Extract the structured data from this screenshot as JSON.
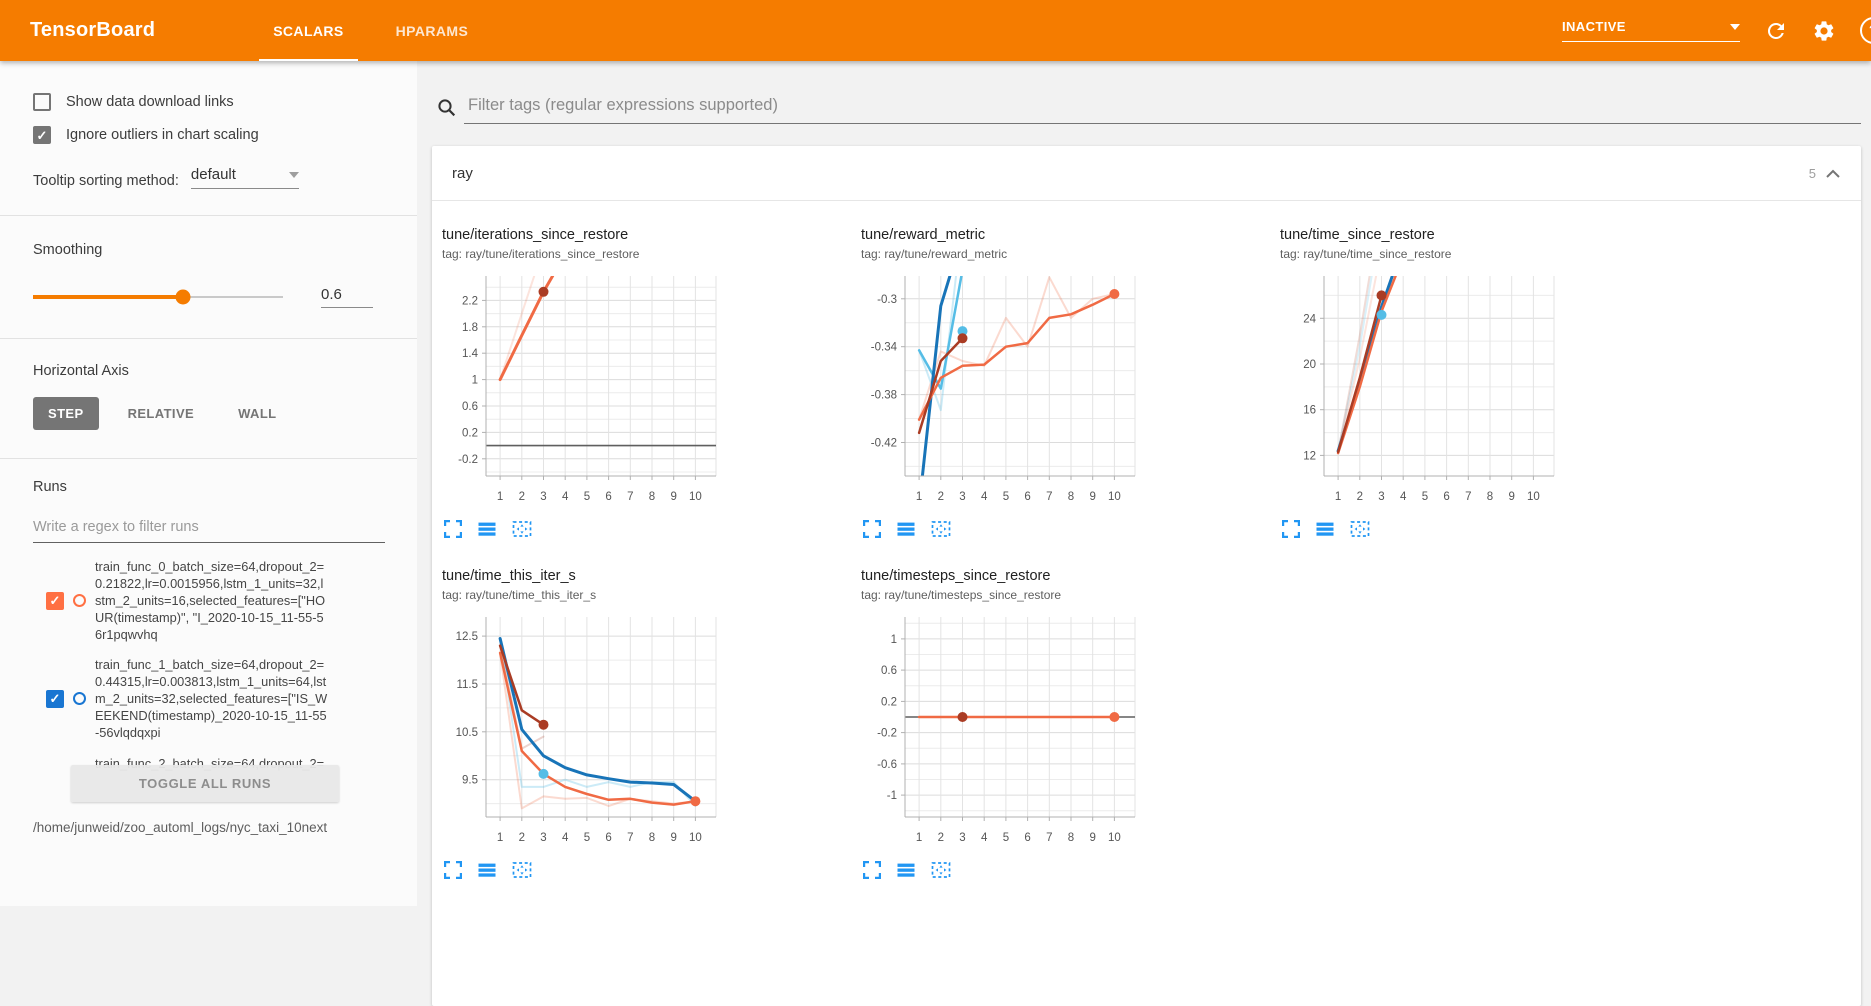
{
  "header": {
    "title": "TensorBoard",
    "tabs": [
      {
        "label": "SCALARS",
        "active": true
      },
      {
        "label": "HPARAMS",
        "active": false
      }
    ],
    "status": "INACTIVE",
    "help": "?"
  },
  "sidebar": {
    "checkboxes": [
      {
        "label": "Show data download links",
        "checked": false
      },
      {
        "label": "Ignore outliers in chart scaling",
        "checked": true
      }
    ],
    "tooltip_sorting": {
      "label": "Tooltip sorting method:",
      "value": "default"
    },
    "smoothing": {
      "label": "Smoothing",
      "value": "0.6",
      "percent": 60
    },
    "horizontal_axis": {
      "label": "Horizontal Axis",
      "options": [
        "STEP",
        "RELATIVE",
        "WALL"
      ],
      "selected": "STEP"
    },
    "runs": {
      "label": "Runs",
      "filter_placeholder": "Write a regex to filter runs",
      "items": [
        {
          "name": "train_func_0_batch_size=64,dropout_2=0.21822,lr=0.0015956,lstm_1_units=32,lstm_2_units=16,selected_features=[\"HOUR(timestamp)\", \"I_2020-10-15_11-55-56r1pqwvhq",
          "checked": true,
          "color": "#ff7043",
          "partial": false
        },
        {
          "name": "train_func_1_batch_size=64,dropout_2=0.44315,lr=0.003813,lstm_1_units=64,lstm_2_units=32,selected_features=[\"IS_WEEKEND(timestamp)_2020-10-15_11-55-56vlqdqxpi",
          "checked": true,
          "color": "#1976d2",
          "partial": false
        },
        {
          "name": "train_func_2_batch_size=64,dropout_2=",
          "checked": true,
          "color": "#9e9e9e",
          "partial": true
        }
      ],
      "toggle_all_label": "TOGGLE ALL RUNS",
      "log_dir": "/home/junweid/zoo_automl_logs/nyc_taxi_10next"
    }
  },
  "main": {
    "filter_placeholder": "Filter tags (regular expressions supported)",
    "section": {
      "name": "ray",
      "count": "5"
    }
  },
  "chart_data": {
    "type": "line",
    "legend_position": "none",
    "grid": true,
    "palette": {
      "orange": "#f06a44",
      "darkred": "#aa3c24",
      "blue": "#1874b8",
      "lightblue": "#55bde6",
      "gray": "#5f5f5f"
    },
    "xticks": [
      1,
      2,
      3,
      4,
      5,
      6,
      7,
      8,
      9,
      10
    ],
    "xlim": [
      0.35,
      10.95
    ],
    "charts": [
      {
        "title": "tune/iterations_since_restore",
        "tag": "tag: ray/tune/iterations_since_restore",
        "ylim": [
          -0.46,
          2.57
        ],
        "yticks": [
          2.2,
          1.8,
          1.4,
          1,
          0.6,
          0.2,
          -0.2
        ],
        "zeroline": 0,
        "series": [
          {
            "name": "run0-raw",
            "color": "orange",
            "opacity": 0.18,
            "points": [
              [
                1,
                1
              ],
              [
                2,
                2
              ],
              [
                2.57,
                2.57
              ]
            ]
          },
          {
            "name": "run0-smoothed",
            "color": "orange",
            "width": 3,
            "points": [
              [
                1,
                1
              ],
              [
                2,
                1.67
              ],
              [
                3,
                2.33
              ],
              [
                3.42,
                2.57
              ]
            ]
          }
        ],
        "dots": [
          {
            "x": 3,
            "y": 2.33,
            "color": "darkred"
          }
        ]
      },
      {
        "title": "tune/reward_metric",
        "tag": "tag: ray/tune/reward_metric",
        "ylim": [
          -0.448,
          -0.281
        ],
        "yticks": [
          -0.3,
          -0.34,
          -0.38,
          -0.42
        ],
        "series": [
          {
            "name": "run0-raw",
            "color": "orange",
            "opacity": 0.25,
            "points": [
              [
                1,
                -0.401
              ],
              [
                2,
                -0.344
              ],
              [
                3,
                -0.352
              ],
              [
                4,
                -0.356
              ],
              [
                5,
                -0.316
              ],
              [
                6,
                -0.34
              ],
              [
                7,
                -0.282
              ],
              [
                8,
                -0.316
              ],
              [
                9,
                -0.3
              ],
              [
                10,
                -0.296
              ]
            ]
          },
          {
            "name": "run2-raw",
            "color": "lightblue",
            "opacity": 0.3,
            "points": [
              [
                1,
                -0.343
              ],
              [
                2,
                -0.393
              ],
              [
                2.7,
                -0.281
              ]
            ]
          },
          {
            "name": "run2-smoothed",
            "color": "lightblue",
            "width": 2.5,
            "points": [
              [
                1,
                -0.343
              ],
              [
                2,
                -0.375
              ],
              [
                2.95,
                -0.281
              ]
            ]
          },
          {
            "name": "run1-smoothed",
            "color": "blue",
            "width": 3,
            "points": [
              [
                1.15,
                -0.448
              ],
              [
                2,
                -0.306
              ],
              [
                2.42,
                -0.281
              ]
            ]
          },
          {
            "name": "run0-smoothed",
            "color": "orange",
            "width": 2.5,
            "points": [
              [
                1,
                -0.401
              ],
              [
                2,
                -0.366
              ],
              [
                3,
                -0.356
              ],
              [
                4,
                -0.355
              ],
              [
                5,
                -0.34
              ],
              [
                6,
                -0.337
              ],
              [
                7,
                -0.316
              ],
              [
                8,
                -0.313
              ],
              [
                9,
                -0.305
              ],
              [
                10,
                -0.296
              ]
            ]
          },
          {
            "name": "run3-smoothed",
            "color": "darkred",
            "width": 2.5,
            "points": [
              [
                1,
                -0.412
              ],
              [
                2,
                -0.352
              ],
              [
                3,
                -0.333
              ]
            ]
          }
        ],
        "dots": [
          {
            "x": 3,
            "y": -0.327,
            "color": "lightblue"
          },
          {
            "x": 3,
            "y": -0.333,
            "color": "darkred"
          },
          {
            "x": 10,
            "y": -0.296,
            "color": "orange"
          }
        ]
      },
      {
        "title": "tune/time_since_restore",
        "tag": "tag: ray/tune/time_since_restore",
        "ylim": [
          10.2,
          27.7
        ],
        "yticks": [
          24,
          20,
          16,
          12
        ],
        "series": [
          {
            "name": "run2-raw",
            "color": "lightblue",
            "opacity": 0.22,
            "points": [
              [
                1,
                12.4
              ],
              [
                2,
                21.5
              ],
              [
                2.55,
                27.7
              ]
            ]
          },
          {
            "name": "run0-raw",
            "color": "orange",
            "opacity": 0.18,
            "points": [
              [
                1,
                12.2
              ],
              [
                2,
                20.5
              ],
              [
                2.75,
                27.7
              ]
            ]
          },
          {
            "name": "run3-raw",
            "color": "darkred",
            "opacity": 0.18,
            "points": [
              [
                1,
                12.3
              ],
              [
                2,
                22.5
              ],
              [
                2.45,
                27.7
              ]
            ]
          },
          {
            "name": "run1-smoothed",
            "color": "blue",
            "width": 3,
            "points": [
              [
                1,
                12.4
              ],
              [
                2,
                18.3
              ],
              [
                3,
                25
              ],
              [
                3.5,
                27.7
              ]
            ]
          },
          {
            "name": "run0-smoothed",
            "color": "orange",
            "width": 2.5,
            "points": [
              [
                1,
                12.2
              ],
              [
                2,
                18
              ],
              [
                3,
                24.6
              ],
              [
                3.65,
                27.7
              ]
            ]
          },
          {
            "name": "run3-smoothed",
            "color": "darkred",
            "width": 2.5,
            "points": [
              [
                1,
                12.3
              ],
              [
                2,
                18.8
              ],
              [
                3,
                26
              ]
            ]
          }
        ],
        "dots": [
          {
            "x": 3,
            "y": 26,
            "color": "darkred"
          },
          {
            "x": 3,
            "y": 24.3,
            "color": "lightblue"
          }
        ]
      },
      {
        "title": "tune/time_this_iter_s",
        "tag": "tag: ray/tune/time_this_iter_s",
        "ylim": [
          8.72,
          12.9
        ],
        "yticks": [
          12.5,
          11.5,
          10.5,
          9.5
        ],
        "series": [
          {
            "name": "run0-raw",
            "color": "orange",
            "opacity": 0.25,
            "points": [
              [
                1,
                12.15
              ],
              [
                2,
                8.9
              ],
              [
                3,
                9.15
              ],
              [
                4,
                9.1
              ],
              [
                5,
                9.12
              ],
              [
                6,
                8.95
              ],
              [
                7,
                9.1
              ],
              [
                8,
                9.05
              ],
              [
                9,
                9
              ],
              [
                10,
                9.05
              ]
            ]
          },
          {
            "name": "run2-raw",
            "color": "lightblue",
            "opacity": 0.3,
            "points": [
              [
                1,
                12.45
              ],
              [
                2,
                9.35
              ],
              [
                3,
                9.35
              ],
              [
                4,
                9.5
              ],
              [
                5,
                9.35
              ],
              [
                6,
                9.45
              ],
              [
                7,
                9.35
              ],
              [
                8,
                9.45
              ],
              [
                9,
                9.45
              ],
              [
                10,
                8.95
              ]
            ]
          },
          {
            "name": "run3-raw",
            "color": "darkred",
            "opacity": 0.22,
            "points": [
              [
                1,
                12.3
              ],
              [
                2,
                10.15
              ],
              [
                3,
                10.4
              ]
            ]
          },
          {
            "name": "run1-smoothed",
            "color": "blue",
            "width": 3,
            "points": [
              [
                1,
                12.45
              ],
              [
                2,
                10.55
              ],
              [
                3,
                10
              ],
              [
                4,
                9.75
              ],
              [
                5,
                9.6
              ],
              [
                6,
                9.52
              ],
              [
                7,
                9.45
              ],
              [
                8,
                9.43
              ],
              [
                9,
                9.4
              ],
              [
                10,
                9.05
              ]
            ]
          },
          {
            "name": "run0-smoothed",
            "color": "orange",
            "width": 2.5,
            "points": [
              [
                1,
                12.15
              ],
              [
                2,
                10.1
              ],
              [
                3,
                9.62
              ],
              [
                4,
                9.35
              ],
              [
                5,
                9.2
              ],
              [
                6,
                9.08
              ],
              [
                7,
                9.1
              ],
              [
                8,
                9.02
              ],
              [
                9,
                8.98
              ],
              [
                10,
                9.05
              ]
            ]
          },
          {
            "name": "run3-smoothed",
            "color": "darkred",
            "width": 2.5,
            "points": [
              [
                1,
                12.3
              ],
              [
                2,
                10.95
              ],
              [
                3,
                10.65
              ]
            ]
          }
        ],
        "dots": [
          {
            "x": 3,
            "y": 10.65,
            "color": "darkred"
          },
          {
            "x": 3,
            "y": 9.62,
            "color": "lightblue"
          },
          {
            "x": 10,
            "y": 9.05,
            "color": "orange"
          }
        ]
      },
      {
        "title": "tune/timesteps_since_restore",
        "tag": "tag: ray/tune/timesteps_since_restore",
        "ylim": [
          -1.28,
          1.28
        ],
        "yticks": [
          1,
          0.6,
          0.2,
          -0.2,
          -0.6,
          -1
        ],
        "zeroline": 0,
        "series": [
          {
            "name": "run0-smoothed",
            "color": "orange",
            "width": 2.5,
            "points": [
              [
                1,
                0
              ],
              [
                10,
                0
              ]
            ]
          }
        ],
        "dots": [
          {
            "x": 3,
            "y": 0,
            "color": "darkred"
          },
          {
            "x": 10,
            "y": 0,
            "color": "orange"
          }
        ]
      }
    ]
  }
}
